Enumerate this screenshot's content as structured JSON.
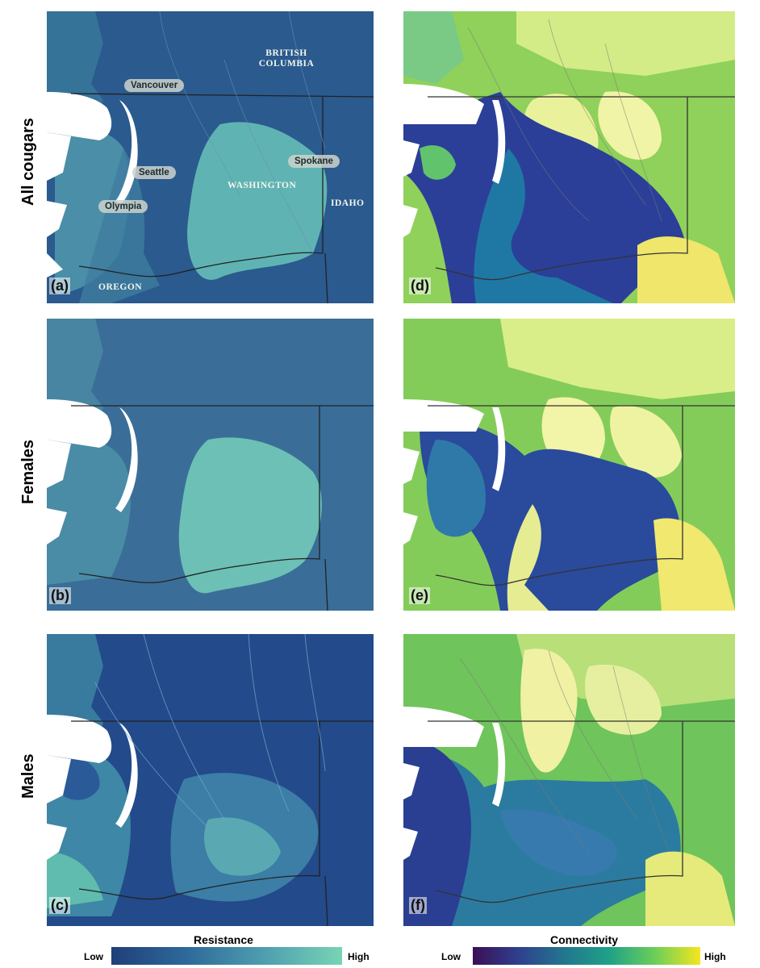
{
  "rows": {
    "all": "All cougars",
    "females": "Females",
    "males": "Males"
  },
  "panels": {
    "a": "(a)",
    "b": "(b)",
    "c": "(c)",
    "d": "(d)",
    "e": "(e)",
    "f": "(f)"
  },
  "places": {
    "bc": "BRITISH COLUMBIA",
    "washington": "WASHINGTON",
    "idaho": "IDAHO",
    "oregon": "OREGON"
  },
  "cities": {
    "vancouver": "Vancouver",
    "seattle": "Seattle",
    "olympia": "Olympia",
    "spokane": "Spokane"
  },
  "legend": {
    "resistance": {
      "title": "Resistance",
      "low": "Low",
      "high": "High",
      "colors": [
        "#1f3f7a",
        "#2f6a9a",
        "#4f9fb0",
        "#77d4b4"
      ]
    },
    "connectivity": {
      "title": "Connectivity",
      "low": "Low",
      "high": "High",
      "colors": [
        "#3b0f55",
        "#2f3f8f",
        "#22768e",
        "#1fa187",
        "#6cce59",
        "#f5e61e"
      ]
    }
  }
}
